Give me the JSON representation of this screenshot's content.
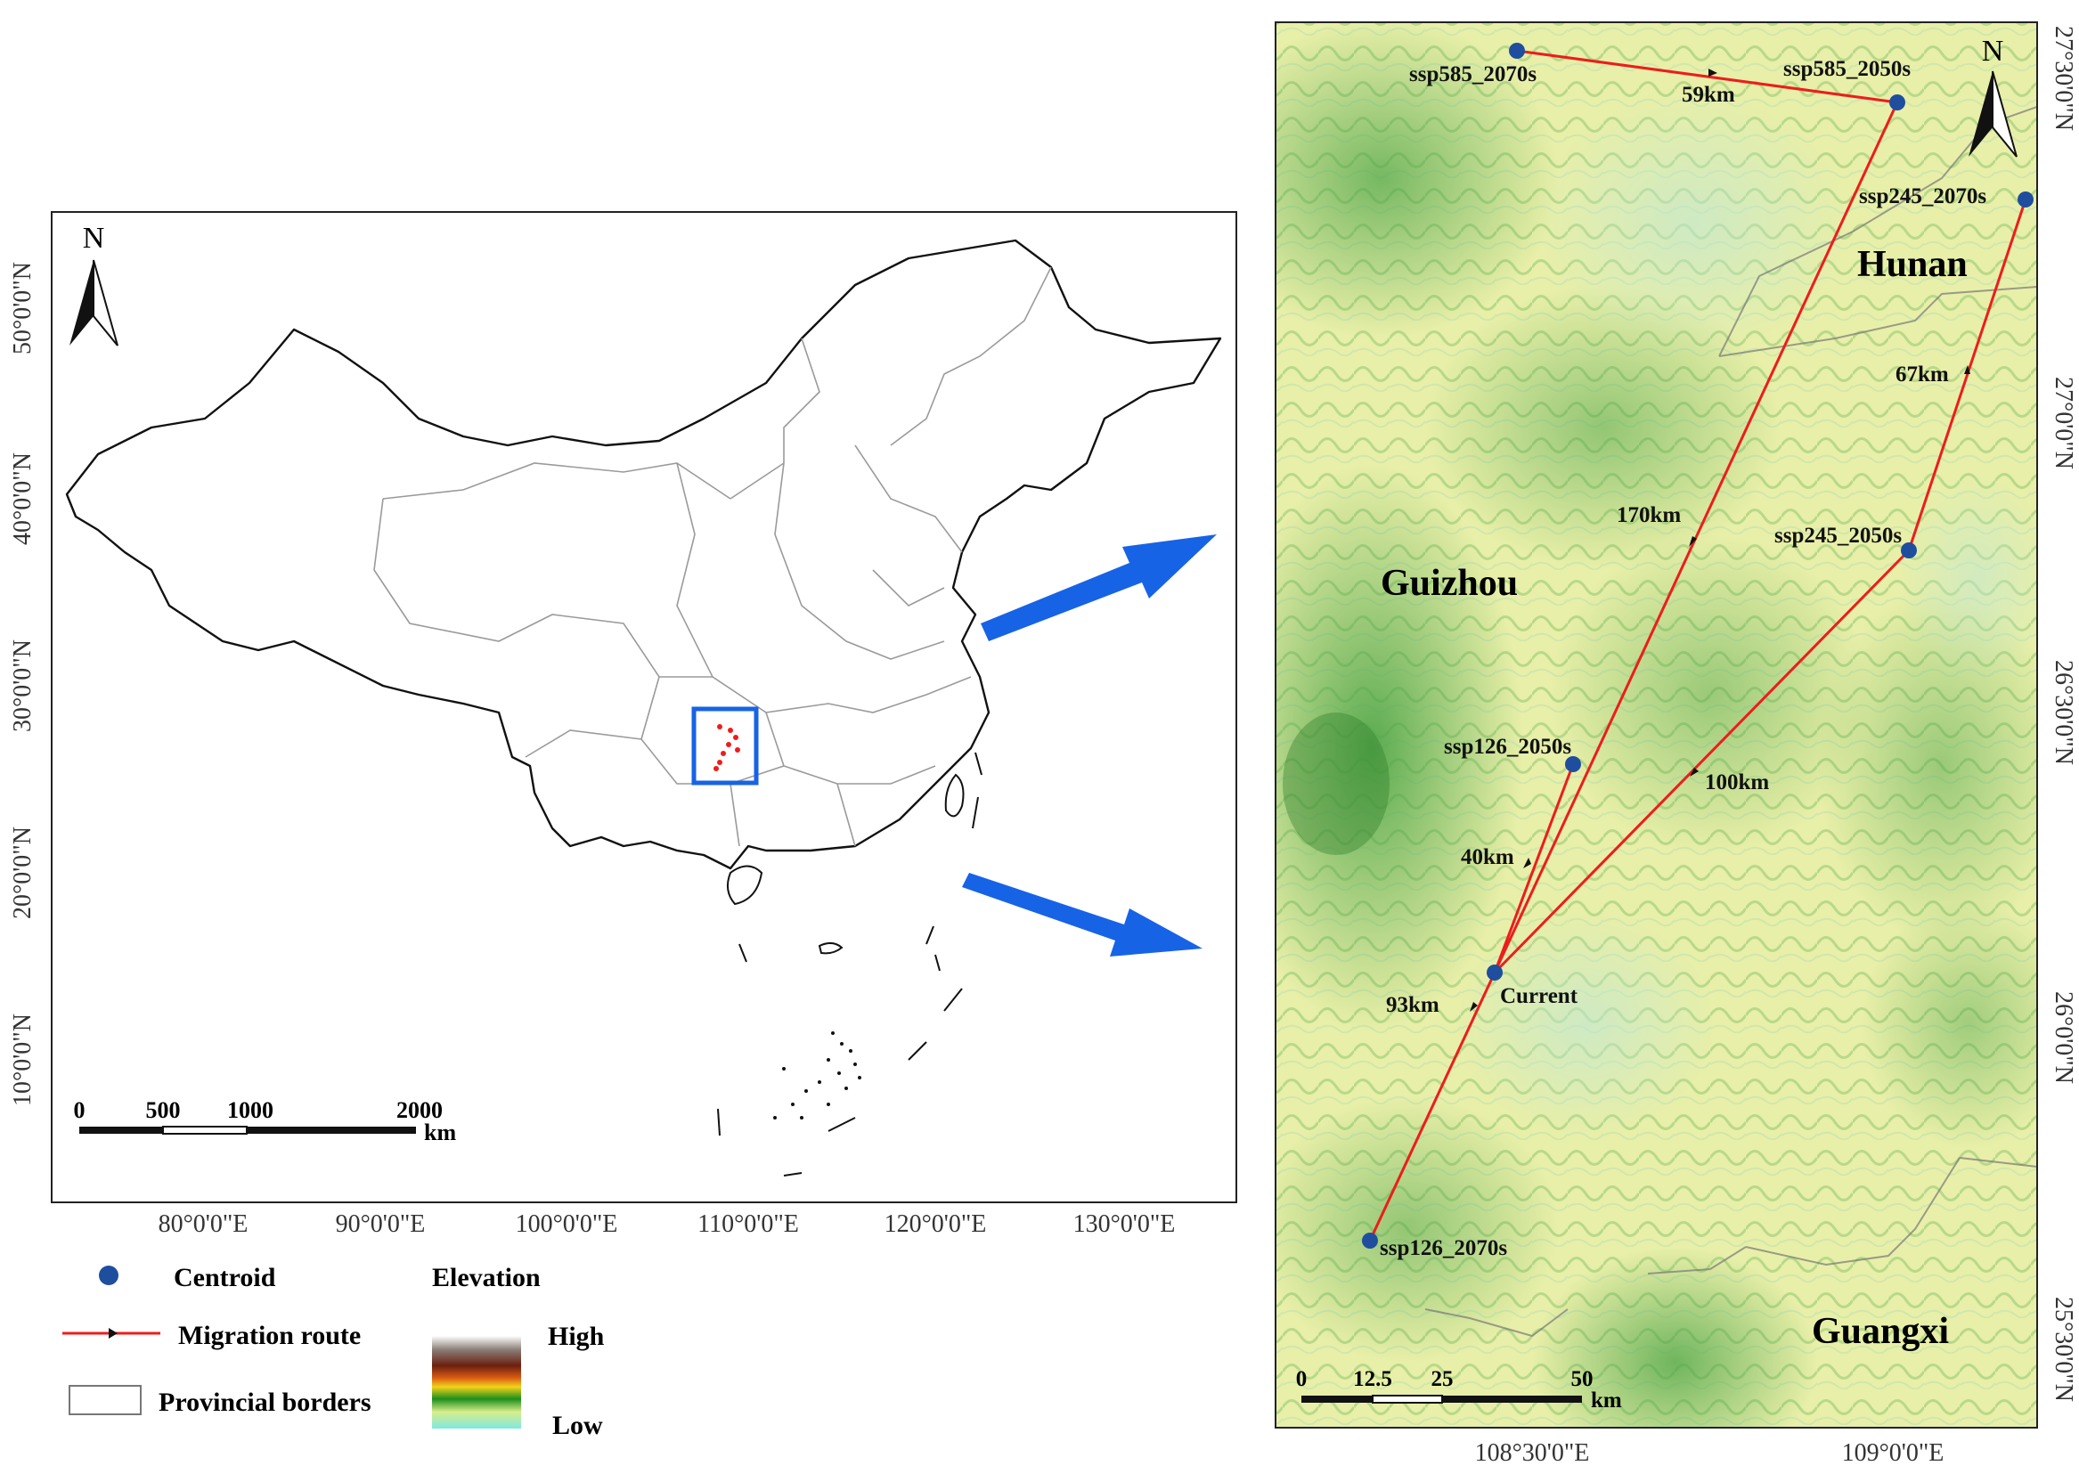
{
  "left_map": {
    "north_label": "N",
    "x_ticks": [
      "80°0'0\"E",
      "90°0'0\"E",
      "100°0'0\"E",
      "110°0'0\"E",
      "120°0'0\"E",
      "130°0'0\"E"
    ],
    "y_ticks": [
      "50°0'0\"N",
      "40°0'0\"N",
      "30°0'0\"N",
      "20°0'0\"N",
      "10°0'0\"N"
    ],
    "scale_labels": [
      "0",
      "500",
      "1000",
      "2000"
    ],
    "scale_unit": "km"
  },
  "legend": {
    "centroid": "Centroid",
    "route": "Migration route",
    "borders": "Provincial borders",
    "elevation_title": "Elevation",
    "elevation_high": "High",
    "elevation_low": "Low"
  },
  "right_map": {
    "north_label": "N",
    "regions": {
      "hunan": "Hunan",
      "guizhou": "Guizhou",
      "guangxi": "Guangxi"
    },
    "centroids": {
      "ssp585_2070s": "ssp585_2070s",
      "ssp585_2050s": "ssp585_2050s",
      "ssp245_2070s": "ssp245_2070s",
      "ssp245_2050s": "ssp245_2050s",
      "ssp126_2050s": "ssp126_2050s",
      "ssp126_2070s": "ssp126_2070s",
      "current": "Current"
    },
    "distances": {
      "d59": "59km",
      "d67": "67km",
      "d170": "170km",
      "d100": "100km",
      "d40": "40km",
      "d93": "93km"
    },
    "x_ticks": [
      "108°30'0\"E",
      "109°0'0\"E"
    ],
    "y_ticks": [
      "27°30'0\"N",
      "27°0'0\"N",
      "26°30'0\"N",
      "26°0'0\"N",
      "25°30'0\"N"
    ],
    "scale_labels": [
      "0",
      "12.5",
      "25",
      "50"
    ],
    "scale_unit": "km"
  },
  "colors": {
    "route": "#ee1c1c",
    "centroid": "#1f4e9e",
    "arrow": "#1763e6",
    "study_box": "#1763e6"
  }
}
